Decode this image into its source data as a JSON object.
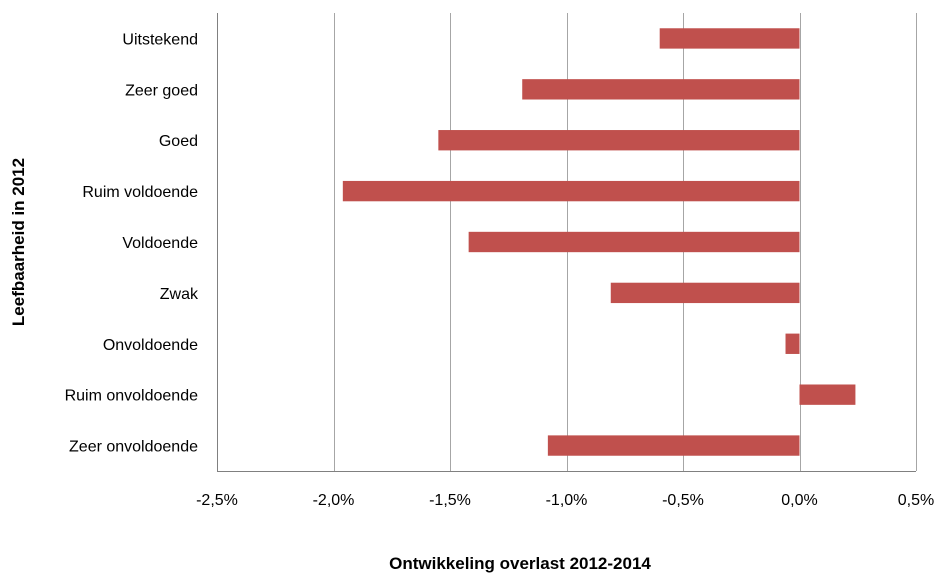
{
  "chart_data": {
    "type": "bar",
    "orientation": "horizontal",
    "title": "",
    "xlabel": "Ontwikkeling overlast 2012-2014",
    "ylabel": "Leefbaarheid in 2012",
    "xlim": [
      -2.5,
      0.5
    ],
    "x_ticks": [
      -2.5,
      -2.0,
      -1.5,
      -1.0,
      -0.5,
      0.0,
      0.5
    ],
    "x_tick_labels": [
      "-2,5%",
      "-2,0%",
      "-1,5%",
      "-1,0%",
      "-0,5%",
      "0,0%",
      "0,5%"
    ],
    "categories": [
      "Uitstekend",
      "Zeer goed",
      "Goed",
      "Ruim voldoende",
      "Voldoende",
      "Zwak",
      "Onvoldoende",
      "Ruim onvoldoende",
      "Zeer onvoldoende"
    ],
    "values": [
      -0.6,
      -1.19,
      -1.55,
      -1.96,
      -1.42,
      -0.81,
      -0.06,
      0.24,
      -1.08
    ],
    "unit": "%",
    "grid": "vertical",
    "legend": "none",
    "bar_color": "#c0504d"
  }
}
